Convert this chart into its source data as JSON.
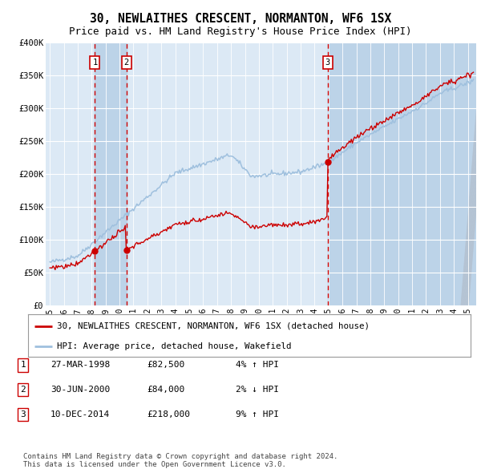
{
  "title": "30, NEWLAITHES CRESCENT, NORMANTON, WF6 1SX",
  "subtitle": "Price paid vs. HM Land Registry's House Price Index (HPI)",
  "ylim": [
    0,
    400000
  ],
  "xlim_start": 1994.7,
  "xlim_end": 2025.6,
  "yticks": [
    0,
    50000,
    100000,
    150000,
    200000,
    250000,
    300000,
    350000,
    400000
  ],
  "ytick_labels": [
    "£0",
    "£50K",
    "£100K",
    "£150K",
    "£200K",
    "£250K",
    "£300K",
    "£350K",
    "£400K"
  ],
  "xtick_years": [
    1995,
    1996,
    1997,
    1998,
    1999,
    2000,
    2001,
    2002,
    2003,
    2004,
    2005,
    2006,
    2007,
    2008,
    2009,
    2010,
    2011,
    2012,
    2013,
    2014,
    2015,
    2016,
    2017,
    2018,
    2019,
    2020,
    2021,
    2022,
    2023,
    2024,
    2025
  ],
  "hpi_color": "#9fc0de",
  "price_color": "#cc0000",
  "plot_bg_color": "#dce9f5",
  "grid_color": "#ffffff",
  "shade_color": "#bcd3e8",
  "transactions": [
    {
      "label": "1",
      "date": 1998.23,
      "price": 82500
    },
    {
      "label": "2",
      "date": 2000.5,
      "price": 84000
    },
    {
      "label": "3",
      "date": 2014.94,
      "price": 218000
    }
  ],
  "legend_entries": [
    "30, NEWLAITHES CRESCENT, NORMANTON, WF6 1SX (detached house)",
    "HPI: Average price, detached house, Wakefield"
  ],
  "table_rows": [
    {
      "num": "1",
      "date": "27-MAR-1998",
      "price": "£82,500",
      "hpi": "4% ↑ HPI"
    },
    {
      "num": "2",
      "date": "30-JUN-2000",
      "price": "£84,000",
      "hpi": "2% ↓ HPI"
    },
    {
      "num": "3",
      "date": "10-DEC-2014",
      "price": "£218,000",
      "hpi": "9% ↑ HPI"
    }
  ],
  "footnote": "Contains HM Land Registry data © Crown copyright and database right 2024.\nThis data is licensed under the Open Government Licence v3.0."
}
